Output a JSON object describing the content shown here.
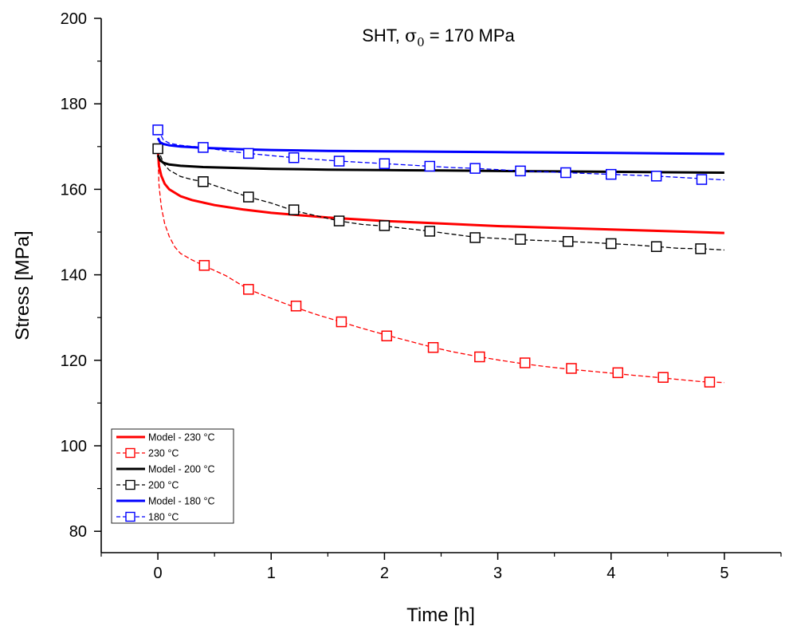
{
  "chart_data": {
    "type": "line",
    "title_prefix": "SHT, ",
    "title_symbol": "σ",
    "title_subscript": "0",
    "title_suffix": " = 170 MPa",
    "xlabel": "Time [h]",
    "ylabel": "Stress [MPa]",
    "xlim": [
      -0.5,
      5.5
    ],
    "ylim": [
      75,
      200
    ],
    "xticks": [
      0,
      1,
      2,
      3,
      4,
      5
    ],
    "yticks": [
      80,
      100,
      120,
      140,
      160,
      180,
      200
    ],
    "grid": false,
    "legend_position": "bottom-left",
    "series": [
      {
        "name": "Model - 230 °C",
        "kind": "model",
        "color": "#ff0000",
        "x": [
          0,
          0.01,
          0.03,
          0.06,
          0.1,
          0.2,
          0.3,
          0.5,
          0.75,
          1.0,
          1.5,
          2.0,
          2.5,
          3.0,
          3.5,
          4.0,
          4.5,
          5.0
        ],
        "y": [
          169,
          165.5,
          163.2,
          161.3,
          160.0,
          158.4,
          157.5,
          156.3,
          155.3,
          154.5,
          153.4,
          152.6,
          152.0,
          151.4,
          151.0,
          150.6,
          150.2,
          149.8
        ]
      },
      {
        "name": "230 °C",
        "kind": "experiment",
        "color": "#ff0000",
        "x": [
          0,
          0.01,
          0.03,
          0.06,
          0.1,
          0.15,
          0.2,
          0.3,
          0.4,
          0.5,
          0.6,
          0.8,
          1.0,
          1.2,
          1.4,
          1.6,
          1.8,
          2.0,
          2.2,
          2.4,
          2.6,
          2.8,
          3.0,
          3.2,
          3.4,
          3.6,
          3.8,
          4.0,
          4.2,
          4.4,
          4.6,
          4.8,
          5.0
        ],
        "y": [
          168,
          161,
          156,
          152,
          149,
          146.5,
          145,
          143.5,
          142.2,
          141,
          139.8,
          136.6,
          134.5,
          132.5,
          130.7,
          129.1,
          127.5,
          126.0,
          124.6,
          123.2,
          122.0,
          121.0,
          120.1,
          119.3,
          118.6,
          118.0,
          117.5,
          117.0,
          116.5,
          116.0,
          115.5,
          115.0,
          114.8
        ],
        "marker_x": [
          0.41,
          0.8,
          1.22,
          1.62,
          2.02,
          2.43,
          2.84,
          3.24,
          3.65,
          4.06,
          4.46,
          4.87
        ],
        "marker_y": [
          142.2,
          136.6,
          132.7,
          129.0,
          125.7,
          123.0,
          120.8,
          119.4,
          118.1,
          117.1,
          116.0,
          114.9
        ]
      },
      {
        "name": "Model - 200 °C",
        "kind": "model",
        "color": "#000000",
        "x": [
          0,
          0.02,
          0.05,
          0.1,
          0.2,
          0.4,
          0.7,
          1.0,
          1.5,
          2.0,
          2.5,
          3.0,
          3.5,
          4.0,
          4.5,
          5.0
        ],
        "y": [
          168,
          166.8,
          166.2,
          165.8,
          165.5,
          165.2,
          165.0,
          164.8,
          164.6,
          164.5,
          164.4,
          164.3,
          164.2,
          164.1,
          164.0,
          163.9
        ]
      },
      {
        "name": "200 °C",
        "kind": "experiment",
        "color": "#000000",
        "x": [
          0,
          0.05,
          0.1,
          0.2,
          0.3,
          0.4,
          0.5,
          0.6,
          0.8,
          1.0,
          1.2,
          1.4,
          1.6,
          1.8,
          2.0,
          2.2,
          2.4,
          2.6,
          2.8,
          3.0,
          3.2,
          3.4,
          3.6,
          3.8,
          4.0,
          4.2,
          4.4,
          4.6,
          4.8,
          5.0
        ],
        "y": [
          169.5,
          166,
          164.5,
          163,
          162.3,
          161.8,
          160.9,
          160.0,
          158.2,
          156.8,
          155.0,
          153.8,
          152.6,
          151.8,
          151.4,
          150.8,
          150.2,
          149.5,
          148.8,
          148.5,
          148.2,
          148.0,
          147.8,
          147.6,
          147.3,
          147.0,
          146.6,
          146.2,
          146.1,
          145.8
        ],
        "marker_x": [
          0.0,
          0.4,
          0.8,
          1.2,
          1.6,
          2.0,
          2.4,
          2.8,
          3.2,
          3.62,
          4.0,
          4.4,
          4.79
        ],
        "marker_y": [
          169.5,
          161.8,
          158.2,
          155.2,
          152.6,
          151.5,
          150.2,
          148.7,
          148.3,
          147.8,
          147.3,
          146.6,
          146.1
        ]
      },
      {
        "name": "Model - 180 °C",
        "kind": "model",
        "color": "#0000ff",
        "x": [
          0,
          0.02,
          0.05,
          0.1,
          0.2,
          0.4,
          0.7,
          1.0,
          1.5,
          2.0,
          2.5,
          3.0,
          3.5,
          4.0,
          4.5,
          5.0
        ],
        "y": [
          172,
          171.0,
          170.6,
          170.3,
          170.0,
          169.7,
          169.4,
          169.2,
          169.0,
          168.9,
          168.8,
          168.7,
          168.6,
          168.5,
          168.4,
          168.3
        ]
      },
      {
        "name": "180 °C",
        "kind": "experiment",
        "color": "#0000ff",
        "x": [
          0,
          0.05,
          0.1,
          0.2,
          0.4,
          0.6,
          0.8,
          1.0,
          1.2,
          1.4,
          1.6,
          1.8,
          2.0,
          2.2,
          2.4,
          2.6,
          2.8,
          3.0,
          3.2,
          3.4,
          3.6,
          3.8,
          4.0,
          4.2,
          4.4,
          4.6,
          4.8,
          5.0
        ],
        "y": [
          174,
          171.5,
          170.8,
          170.3,
          169.8,
          169.0,
          168.4,
          167.9,
          167.4,
          167.0,
          166.6,
          166.3,
          166.0,
          165.7,
          165.4,
          165.1,
          164.9,
          164.6,
          164.3,
          164.1,
          163.9,
          163.7,
          163.5,
          163.3,
          163.1,
          162.8,
          162.5,
          162.2
        ],
        "marker_x": [
          0.0,
          0.4,
          0.8,
          1.2,
          1.6,
          2.0,
          2.4,
          2.8,
          3.2,
          3.6,
          4.0,
          4.4,
          4.8
        ],
        "marker_y": [
          173.9,
          169.8,
          168.4,
          167.4,
          166.6,
          166.0,
          165.4,
          164.9,
          164.3,
          163.9,
          163.5,
          163.1,
          162.3
        ]
      }
    ]
  }
}
